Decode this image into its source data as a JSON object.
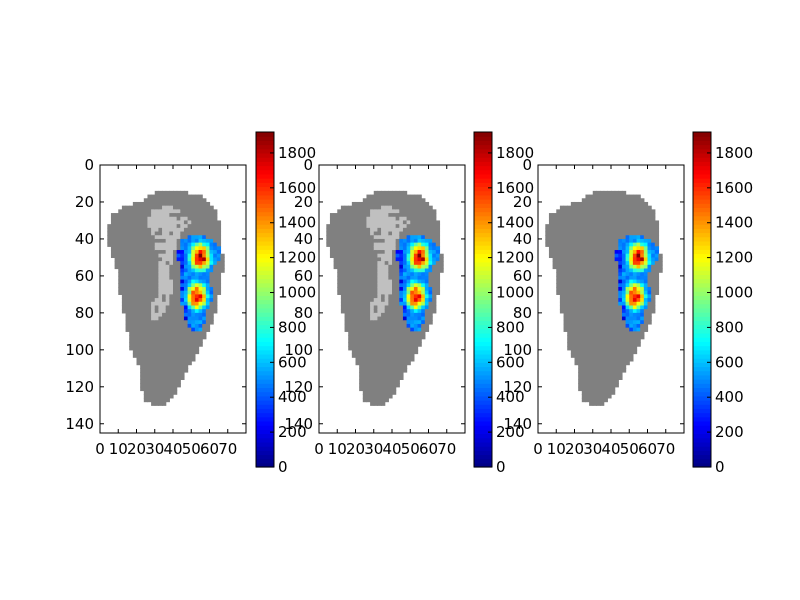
{
  "chart_data": [
    {
      "type": "heatmap",
      "title": "",
      "xlabel": "",
      "ylabel": "",
      "xlim": [
        0,
        80
      ],
      "ylim": [
        0,
        145
      ],
      "y_inverted": true,
      "xticks": [
        "0",
        "10",
        "20",
        "30",
        "40",
        "50",
        "60",
        "70"
      ],
      "yticks": [
        "0",
        "20",
        "40",
        "60",
        "80",
        "100",
        "120",
        "140"
      ],
      "colorbar": {
        "colormap": "jet",
        "range": [
          0,
          1920
        ],
        "ticks": [
          "0",
          "200",
          "400",
          "600",
          "800",
          "1000",
          "1200",
          "1400",
          "1600",
          "1800"
        ]
      },
      "background_colors": {
        "land": "#808080",
        "light_region": "#c0c0c0",
        "missing": "#ffffff"
      },
      "hotspot": {
        "x_range": [
          44,
          68
        ],
        "y_range": [
          38,
          90
        ],
        "value_range": [
          0,
          1850
        ]
      },
      "light_region_shown": true
    },
    {
      "type": "heatmap",
      "title": "",
      "xlabel": "",
      "ylabel": "",
      "xlim": [
        0,
        80
      ],
      "ylim": [
        0,
        145
      ],
      "y_inverted": true,
      "xticks": [
        "0",
        "10",
        "20",
        "30",
        "40",
        "50",
        "60",
        "70"
      ],
      "yticks": [
        "0",
        "20",
        "40",
        "60",
        "80",
        "100",
        "120",
        "140"
      ],
      "colorbar": {
        "colormap": "jet",
        "range": [
          0,
          1920
        ],
        "ticks": [
          "0",
          "200",
          "400",
          "600",
          "800",
          "1000",
          "1200",
          "1400",
          "1600",
          "1800"
        ]
      },
      "background_colors": {
        "land": "#808080",
        "light_region": "#c0c0c0",
        "missing": "#ffffff"
      },
      "hotspot": {
        "x_range": [
          44,
          68
        ],
        "y_range": [
          38,
          90
        ],
        "value_range": [
          0,
          1850
        ]
      },
      "light_region_shown": true
    },
    {
      "type": "heatmap",
      "title": "",
      "xlabel": "",
      "ylabel": "",
      "xlim": [
        0,
        80
      ],
      "ylim": [
        0,
        145
      ],
      "y_inverted": true,
      "xticks": [
        "0",
        "10",
        "20",
        "30",
        "40",
        "50",
        "60",
        "70"
      ],
      "yticks": [
        "0",
        "20",
        "40",
        "60",
        "80",
        "100",
        "120",
        "140"
      ],
      "colorbar": {
        "colormap": "jet",
        "range": [
          0,
          1920
        ],
        "ticks": [
          "0",
          "200",
          "400",
          "600",
          "800",
          "1000",
          "1200",
          "1400",
          "1600",
          "1800"
        ]
      },
      "background_colors": {
        "land": "#808080",
        "light_region": "#c0c0c0",
        "missing": "#ffffff"
      },
      "hotspot": {
        "x_range": [
          44,
          68
        ],
        "y_range": [
          38,
          90
        ],
        "value_range": [
          0,
          1850
        ]
      },
      "light_region_shown": false
    }
  ]
}
